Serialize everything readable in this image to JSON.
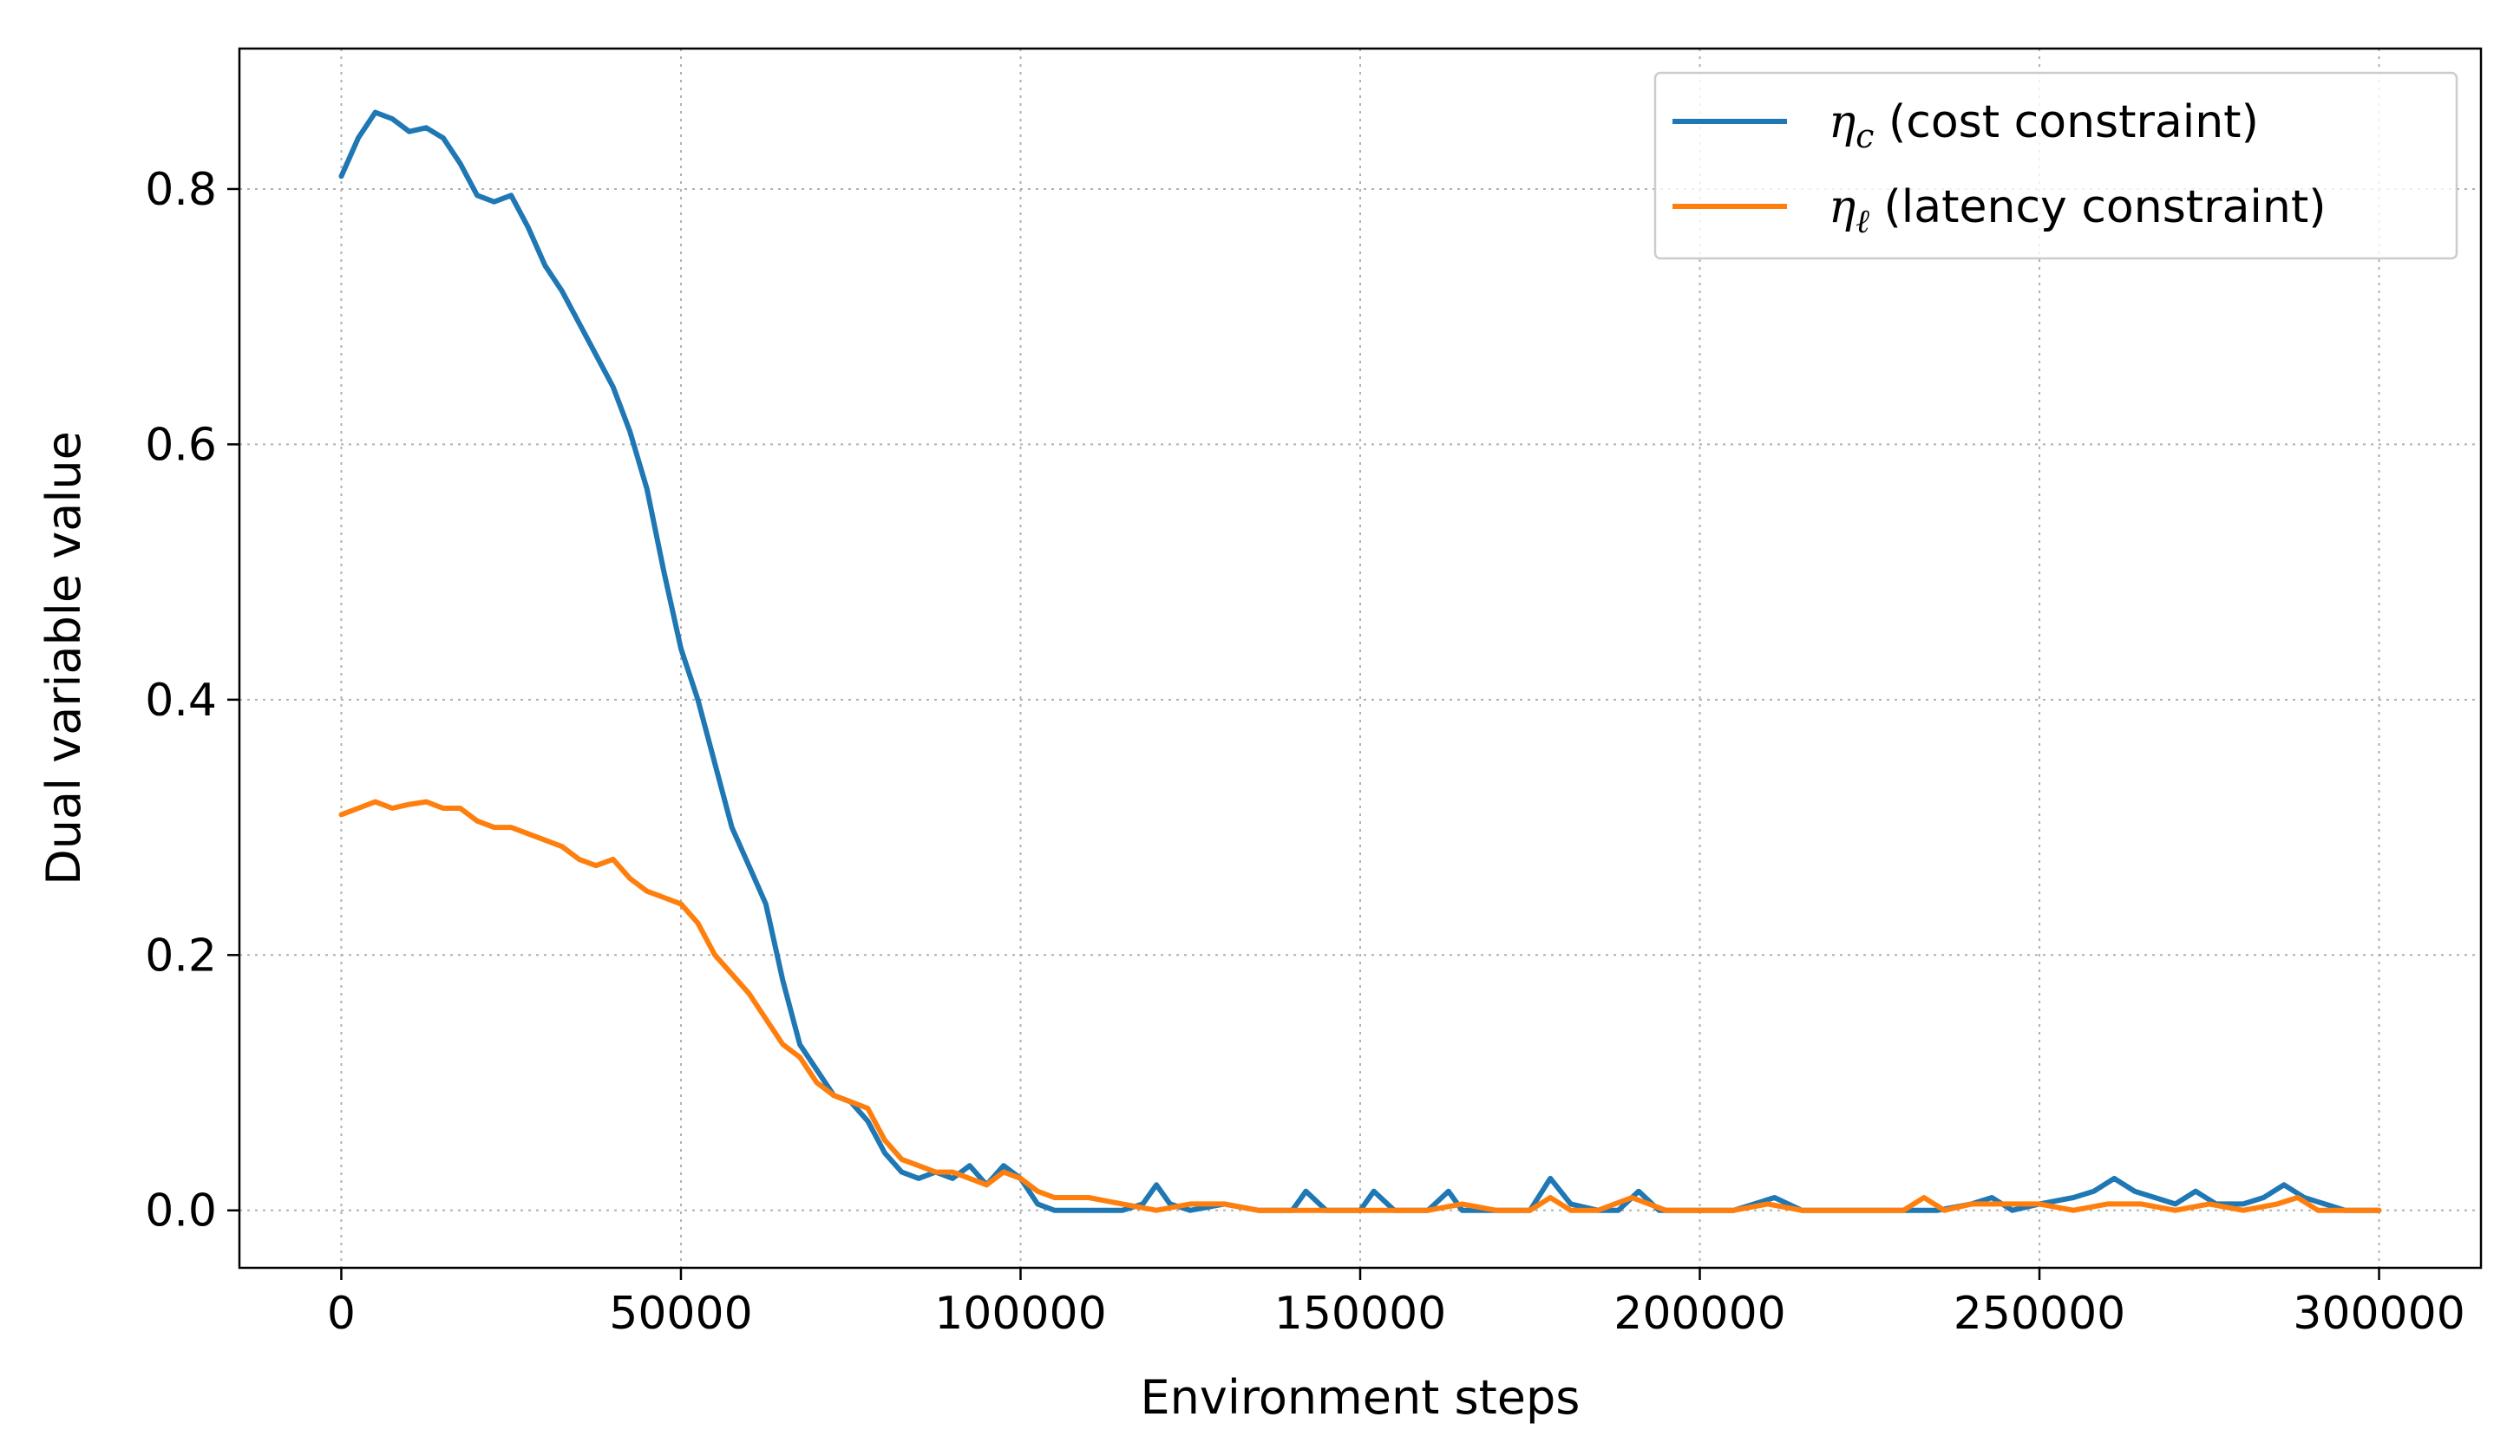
{
  "chart_data": {
    "type": "line",
    "title": "",
    "xlabel": "Environment steps",
    "ylabel": "Dual variable value",
    "xlim": [
      -15000,
      315000
    ],
    "ylim": [
      -0.045,
      0.91
    ],
    "xticks": [
      0,
      50000,
      100000,
      150000,
      200000,
      250000,
      300000
    ],
    "xtick_labels": [
      "0",
      "50000",
      "100000",
      "150000",
      "200000",
      "250000",
      "300000"
    ],
    "yticks": [
      0.0,
      0.2,
      0.4,
      0.6,
      0.8
    ],
    "ytick_labels": [
      "0.0",
      "0.2",
      "0.4",
      "0.6",
      "0.8"
    ],
    "grid": true,
    "legend": "top-right",
    "series": [
      {
        "name": "η_c (cost constraint)",
        "legend_symbol": "η",
        "legend_subscript": "c",
        "legend_text": " (cost constraint)",
        "color": "#1f77b4",
        "x": [
          0,
          2500,
          5000,
          7500,
          10000,
          12500,
          15000,
          17500,
          20000,
          22500,
          25000,
          27500,
          30000,
          32500,
          35000,
          37500,
          40000,
          42500,
          45000,
          47500,
          50000,
          52500,
          55000,
          57500,
          60000,
          62500,
          65000,
          67500,
          70000,
          72500,
          75000,
          77500,
          80000,
          82500,
          85000,
          87500,
          90000,
          92500,
          95000,
          97500,
          100000,
          102500,
          105000,
          110000,
          115000,
          118000,
          120000,
          122000,
          125000,
          130000,
          135000,
          140000,
          142000,
          145000,
          150000,
          152000,
          155000,
          160000,
          163000,
          165000,
          170000,
          175000,
          178000,
          181000,
          185000,
          188000,
          191000,
          194000,
          200000,
          205000,
          208000,
          211000,
          215000,
          220000,
          225000,
          230000,
          235000,
          240000,
          243000,
          246000,
          250000,
          255000,
          258000,
          261000,
          264000,
          267000,
          270000,
          273000,
          276000,
          280000,
          283000,
          286000,
          289000,
          292000,
          295000,
          300000
        ],
        "y": [
          0.81,
          0.84,
          0.86,
          0.855,
          0.845,
          0.848,
          0.84,
          0.82,
          0.795,
          0.79,
          0.795,
          0.77,
          0.74,
          0.72,
          0.695,
          0.67,
          0.645,
          0.61,
          0.565,
          0.5,
          0.44,
          0.4,
          0.35,
          0.3,
          0.27,
          0.24,
          0.18,
          0.13,
          0.11,
          0.09,
          0.085,
          0.07,
          0.045,
          0.03,
          0.025,
          0.03,
          0.025,
          0.035,
          0.02,
          0.035,
          0.025,
          0.005,
          0.0,
          0.0,
          0.0,
          0.005,
          0.02,
          0.005,
          0.0,
          0.005,
          0.0,
          0.0,
          0.015,
          0.0,
          0.0,
          0.015,
          0.0,
          0.0,
          0.015,
          0.0,
          0.0,
          0.0,
          0.025,
          0.005,
          0.0,
          0.0,
          0.015,
          0.0,
          0.0,
          0.0,
          0.005,
          0.01,
          0.0,
          0.0,
          0.0,
          0.0,
          0.0,
          0.005,
          0.01,
          0.0,
          0.005,
          0.01,
          0.015,
          0.025,
          0.015,
          0.01,
          0.005,
          0.015,
          0.005,
          0.005,
          0.01,
          0.02,
          0.01,
          0.005,
          0.0,
          0.0
        ]
      },
      {
        "name": "η_ℓ (latency constraint)",
        "legend_symbol": "η",
        "legend_subscript": "ℓ",
        "legend_text": " (latency constraint)",
        "color": "#ff7f0e",
        "x": [
          0,
          2500,
          5000,
          7500,
          10000,
          12500,
          15000,
          17500,
          20000,
          22500,
          25000,
          27500,
          30000,
          32500,
          35000,
          37500,
          40000,
          42500,
          45000,
          47500,
          50000,
          52500,
          55000,
          57500,
          60000,
          62500,
          65000,
          67500,
          70000,
          72500,
          75000,
          77500,
          80000,
          82500,
          85000,
          87500,
          90000,
          92500,
          95000,
          97500,
          100000,
          102500,
          105000,
          110000,
          115000,
          120000,
          125000,
          130000,
          135000,
          140000,
          145000,
          150000,
          155000,
          160000,
          165000,
          170000,
          175000,
          178000,
          181000,
          185000,
          190000,
          195000,
          200000,
          205000,
          210000,
          215000,
          220000,
          225000,
          230000,
          233000,
          236000,
          240000,
          245000,
          250000,
          255000,
          260000,
          265000,
          270000,
          275000,
          280000,
          285000,
          288000,
          291000,
          295000,
          300000
        ],
        "y": [
          0.31,
          0.315,
          0.32,
          0.315,
          0.318,
          0.32,
          0.315,
          0.315,
          0.305,
          0.3,
          0.3,
          0.295,
          0.29,
          0.285,
          0.275,
          0.27,
          0.275,
          0.26,
          0.25,
          0.245,
          0.24,
          0.225,
          0.2,
          0.185,
          0.17,
          0.15,
          0.13,
          0.12,
          0.1,
          0.09,
          0.085,
          0.08,
          0.055,
          0.04,
          0.035,
          0.03,
          0.03,
          0.025,
          0.02,
          0.03,
          0.025,
          0.015,
          0.01,
          0.01,
          0.005,
          0.0,
          0.005,
          0.005,
          0.0,
          0.0,
          0.0,
          0.0,
          0.0,
          0.0,
          0.005,
          0.0,
          0.0,
          0.01,
          0.0,
          0.0,
          0.01,
          0.0,
          0.0,
          0.0,
          0.005,
          0.0,
          0.0,
          0.0,
          0.0,
          0.01,
          0.0,
          0.005,
          0.005,
          0.005,
          0.0,
          0.005,
          0.005,
          0.0,
          0.005,
          0.0,
          0.005,
          0.01,
          0.0,
          0.0,
          0.0
        ]
      }
    ]
  }
}
